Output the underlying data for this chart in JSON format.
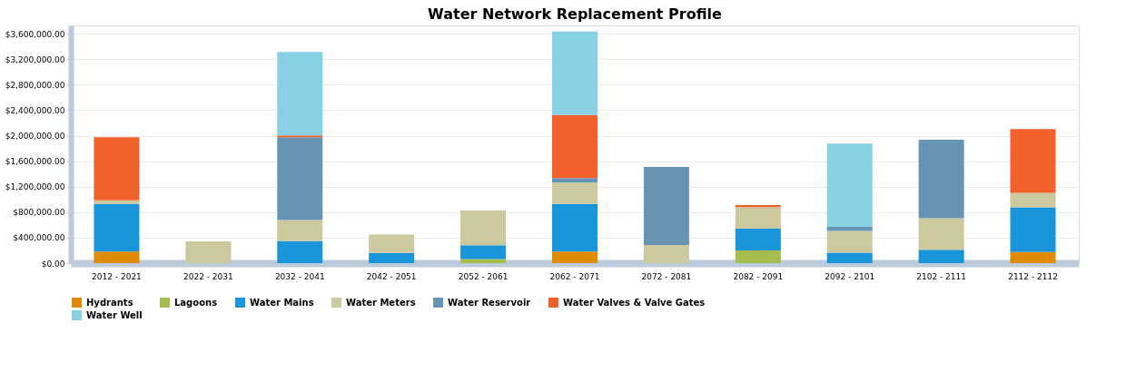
{
  "chart_data": {
    "type": "bar",
    "title": "Water Network Replacement Profile",
    "stacked": true,
    "grid": "y",
    "legend": "bottom",
    "categories": [
      "2012 - 2021",
      "2022 - 2031",
      "2032 - 2041",
      "2042 - 2051",
      "2052 - 2061",
      "2062 - 2071",
      "2072 - 2081",
      "2082 - 2091",
      "2092 - 2101",
      "2102 - 2111",
      "2112 - 2112"
    ],
    "ylim": [
      0,
      3730000
    ],
    "yticks": [
      {
        "value": 0,
        "label": "$0.00"
      },
      {
        "value": 400000,
        "label": "$400,000.00"
      },
      {
        "value": 800000,
        "label": "$800,000.00"
      },
      {
        "value": 1200000,
        "label": "$1,200,000.00"
      },
      {
        "value": 1600000,
        "label": "$1,600,000.00"
      },
      {
        "value": 2000000,
        "label": "$2,000,000.00"
      },
      {
        "value": 2400000,
        "label": "$2,400,000.00"
      },
      {
        "value": 2800000,
        "label": "$2,800,000.00"
      },
      {
        "value": 3200000,
        "label": "$3,200,000.00"
      },
      {
        "value": 3600000,
        "label": "$3,600,000.00"
      }
    ],
    "series": [
      {
        "name": "Hydrants",
        "color": "#e08a00",
        "values": [
          180000,
          null,
          null,
          null,
          null,
          180000,
          null,
          null,
          null,
          null,
          175000
        ]
      },
      {
        "name": "Lagoons",
        "color": "#a5bd4e",
        "values": [
          null,
          null,
          null,
          null,
          65000,
          null,
          null,
          200000,
          null,
          null,
          null
        ]
      },
      {
        "name": "Water Mains",
        "color": "#1b95d9",
        "values": [
          750000,
          null,
          345000,
          160000,
          215000,
          750000,
          null,
          340000,
          165000,
          210000,
          700000
        ]
      },
      {
        "name": "Water Meters",
        "color": "#cbc99d",
        "values": [
          55000,
          340000,
          330000,
          290000,
          545000,
          335000,
          285000,
          340000,
          340000,
          495000,
          230000
        ]
      },
      {
        "name": "Water Reservoir",
        "color": "#6794b3",
        "values": [
          null,
          null,
          1300000,
          null,
          null,
          70000,
          1225000,
          null,
          65000,
          1230000,
          null
        ]
      },
      {
        "name": "Water Valves & Valve Gates",
        "color": "#f0602a",
        "values": [
          990000,
          null,
          30000,
          null,
          null,
          990000,
          null,
          30000,
          null,
          null,
          1000000
        ]
      },
      {
        "name": "Water Well",
        "color": "#88d0e4",
        "values": [
          null,
          null,
          1310000,
          null,
          null,
          1310000,
          null,
          null,
          1305000,
          null,
          null
        ]
      }
    ]
  }
}
